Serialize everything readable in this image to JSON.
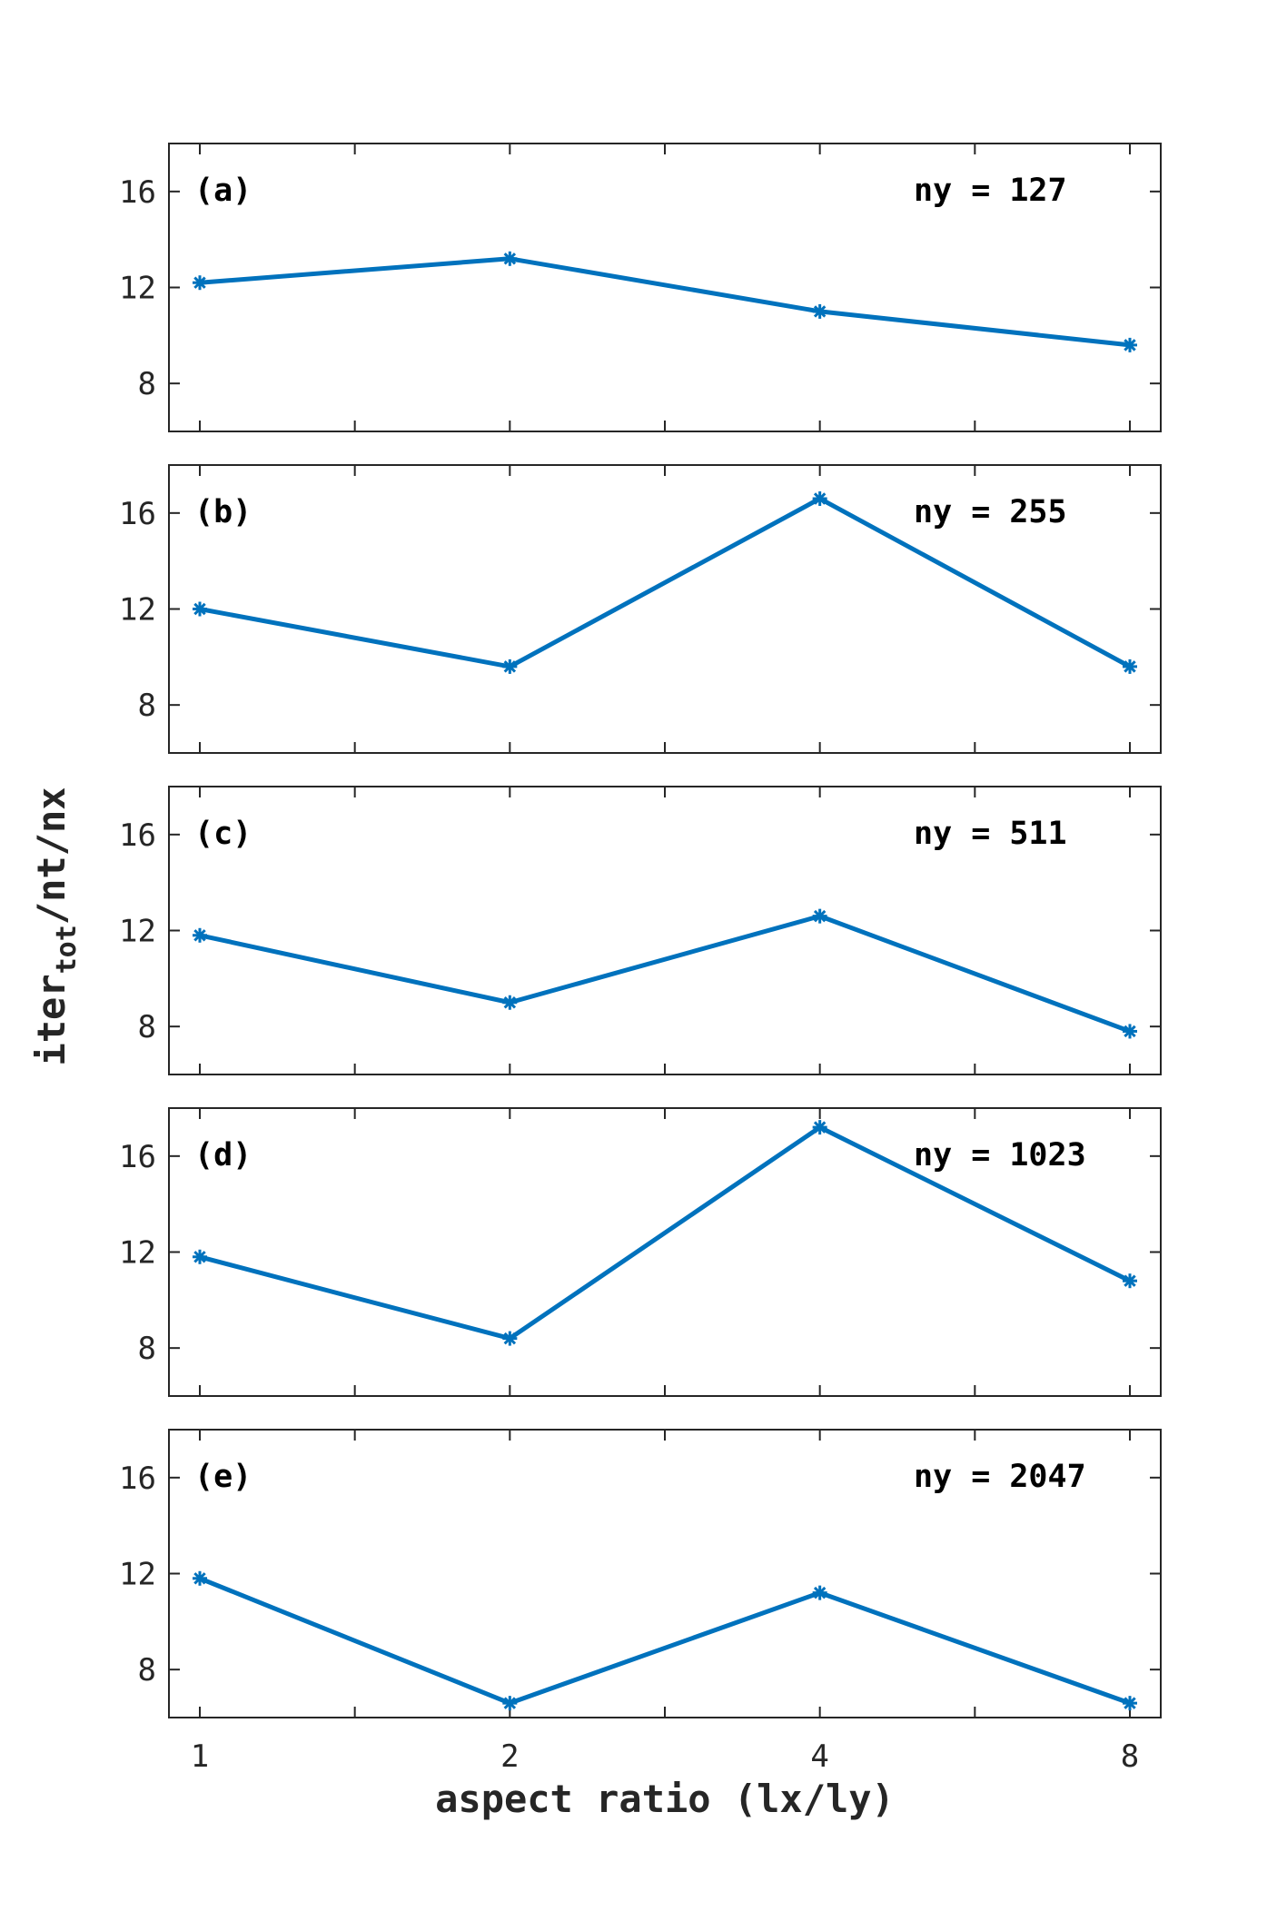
{
  "chart_data": {
    "type": "line",
    "xlabel": "aspect ratio (lx/ly)",
    "ylabel": {
      "main": "iter",
      "sub": "tot",
      "rest": "/nt/nx"
    },
    "categories": [
      "1",
      "2",
      "4",
      "8"
    ],
    "ylim": [
      6,
      18
    ],
    "yticks": [
      "8",
      "12",
      "16"
    ],
    "line_color": "#0072BD",
    "grid": false,
    "panels": [
      {
        "label": "(a)",
        "annotation": "ny = 127",
        "values": [
          12.2,
          13.2,
          11.0,
          9.6
        ]
      },
      {
        "label": "(b)",
        "annotation": "ny = 255",
        "values": [
          12.0,
          9.6,
          16.6,
          9.6
        ]
      },
      {
        "label": "(c)",
        "annotation": "ny = 511",
        "values": [
          11.8,
          9.0,
          12.6,
          7.8
        ]
      },
      {
        "label": "(d)",
        "annotation": "ny = 1023",
        "values": [
          11.8,
          8.4,
          17.2,
          10.8
        ]
      },
      {
        "label": "(e)",
        "annotation": "ny = 2047",
        "values": [
          11.8,
          6.6,
          11.2,
          6.6
        ]
      }
    ]
  }
}
